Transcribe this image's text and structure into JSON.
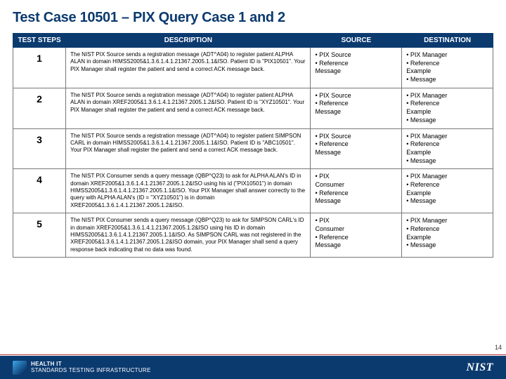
{
  "title": "Test Case 10501 – PIX Query Case 1 and 2",
  "columns": {
    "step": "TEST STEPS",
    "desc": "DESCRIPTION",
    "src": "SOURCE",
    "dst": "DESTINATION"
  },
  "rows": [
    {
      "step": "1",
      "desc": "The NIST PIX Source sends a registration message (ADT^A04) to register patient ALPHA ALAN in domain HIMSS2005&1.3.6.1.4.1.21367.2005.1.1&ISO. Patient ID is \"PIX10501\". Your PIX Manager shall register the patient and send a correct ACK message back.",
      "src": [
        "• PIX Source",
        "• Reference",
        "Message"
      ],
      "dst": [
        "• PIX Manager",
        "• Reference",
        "Example",
        "• Message"
      ]
    },
    {
      "step": "2",
      "desc": "The NIST PIX Source sends a registration message (ADT^A04) to register patient ALPHA ALAN in domain XREF2005&1.3.6.1.4.1.21367.2005.1.2&ISO. Patient ID is \"XYZ10501\". Your PIX Manager shall register the patient and send a correct ACK message back.",
      "src": [
        "• PIX Source",
        "• Reference",
        "Message"
      ],
      "dst": [
        "• PIX Manager",
        "• Reference",
        "Example",
        "• Message"
      ]
    },
    {
      "step": "3",
      "desc": "The NIST PIX Source sends a registration message (ADT^A04) to register patient SIMPSON CARL in domain HIMSS2005&1.3.6.1.4.1.21367.2005.1.1&ISO. Patient ID is \"ABC10501\". Your PIX Manager shall register the patient and send a correct ACK message back.",
      "src": [
        "• PIX Source",
        "• Reference",
        "Message"
      ],
      "dst": [
        "• PIX Manager",
        "• Reference",
        "Example",
        "• Message"
      ]
    },
    {
      "step": "4",
      "desc": "The NIST PIX Consumer sends a query message (QBP^Q23) to ask for ALPHA ALAN's ID in domain XREF2005&1.3.6.1.4.1.21367.2005.1.2&ISO using his id (\"PIX10501\") in domain HIMSS2005&1.3.6.1.4.1.21367.2005.1.1&ISO. Your PIX Manager shall answer correctly to the query with ALPHA ALAN's (ID = \"XYZ10501\") is in domain XREF2005&1.3.6.1.4.1.21367.2005.1.2&ISO.",
      "src": [
        "• PIX",
        "Consumer",
        "• Reference",
        "Message"
      ],
      "dst": [
        "• PIX Manager",
        "• Reference",
        "Example",
        "• Message"
      ]
    },
    {
      "step": "5",
      "desc": "The NIST PIX Consumer sends a query message (QBP^Q23) to ask for SIMPSON CARL's ID in domain XREF2005&1.3.6.1.4.1.21367.2005.1.2&ISO using his ID in domain HIMSS2005&1.3.6.1.4.1.21367.2005.1.1&ISO. As SIMPSON CARL was not registered in the XREF2005&1.3.6.1.4.1.21367.2005.1.2&ISO domain, your PIX Manager shall send a query response back indicating that no data was found.",
      "src": [
        "• PIX",
        "Consumer",
        "• Reference",
        "Message"
      ],
      "dst": [
        "• PIX Manager",
        "• Reference",
        "Example",
        "• Message"
      ]
    }
  ],
  "footer": {
    "line1": "HEALTH IT",
    "line2": "STANDARDS TESTING INFRASTRUCTURE",
    "nist": "NIST"
  },
  "page_number": "14",
  "colors": {
    "heading": "#0b3a6f",
    "header_bg": "#0b3a6f",
    "border": "#777777"
  }
}
